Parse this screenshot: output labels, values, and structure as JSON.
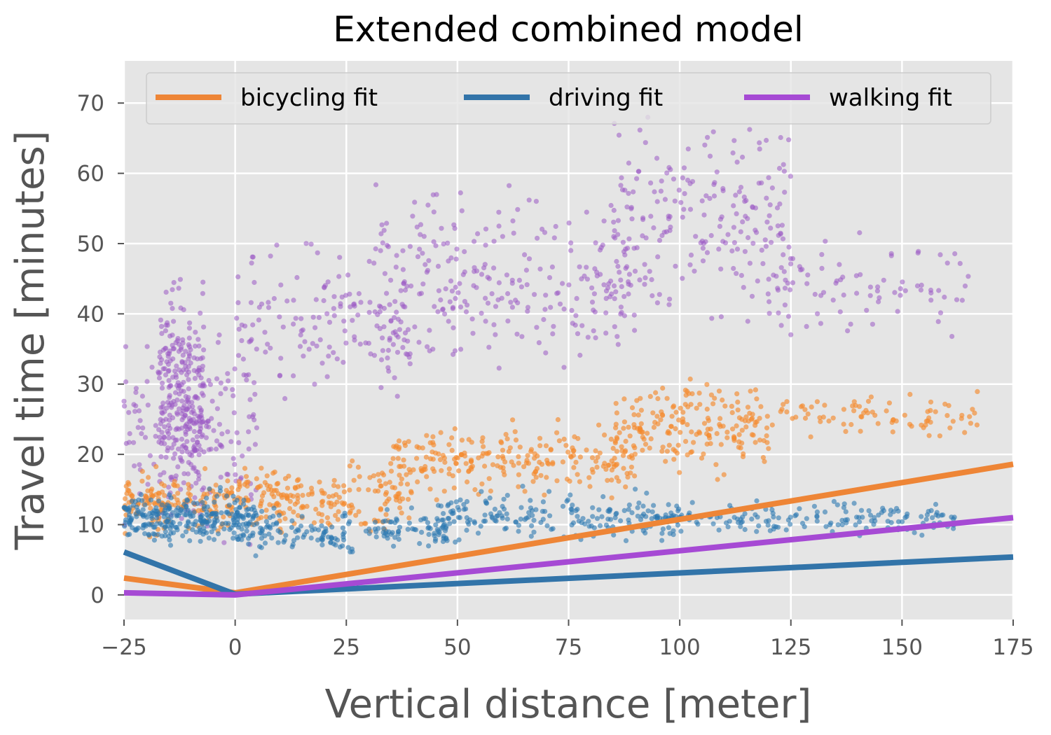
{
  "chart_data": {
    "type": "scatter",
    "title": "Extended combined model",
    "xlabel": "Vertical distance [meter]",
    "ylabel": "Travel time [minutes]",
    "xlim": [
      -25,
      175
    ],
    "ylim": [
      -3.5,
      76
    ],
    "x_ticks": [
      -25,
      0,
      25,
      50,
      75,
      100,
      125,
      150,
      175
    ],
    "x_tick_labels": [
      "−25",
      "0",
      "25",
      "50",
      "75",
      "100",
      "125",
      "150",
      "175"
    ],
    "y_ticks": [
      0,
      10,
      20,
      30,
      40,
      50,
      60,
      70
    ],
    "y_tick_labels": [
      "0",
      "10",
      "20",
      "30",
      "40",
      "50",
      "60",
      "70"
    ],
    "grid": true,
    "legend_placement": "top",
    "legend_columns": 3,
    "colors": {
      "background": "#e5e5e5",
      "grid": "#ffffff",
      "bicycling": "#ee8536",
      "driving": "#3274a9",
      "walking": "#a64ad4",
      "bicycling_points": "#f58a2e",
      "driving_points": "#2b78b0",
      "walking_points": "#9b59c4"
    },
    "fit_lines": [
      {
        "name": "bicycling fit",
        "color_key": "bicycling",
        "x": [
          -25,
          0,
          175
        ],
        "y": [
          2.4,
          0.3,
          18.6
        ]
      },
      {
        "name": "driving fit",
        "color_key": "driving",
        "x": [
          -25,
          0,
          175
        ],
        "y": [
          6.1,
          0.1,
          5.4
        ]
      },
      {
        "name": "walking fit",
        "color_key": "walking",
        "x": [
          -25,
          0,
          175
        ],
        "y": [
          0.3,
          0.0,
          11.0
        ]
      }
    ],
    "scatter_series": [
      {
        "color_key": "walking_points",
        "opacity": 0.55,
        "clusters": [
          {
            "count": 260,
            "x_range": [
              -17,
              -7
            ],
            "y_mean": 28,
            "y_spread": 12
          },
          {
            "count": 170,
            "x_range": [
              -25,
              5
            ],
            "y_mean": 24,
            "y_spread": 11
          },
          {
            "count": 150,
            "x_range": [
              0,
              40
            ],
            "y_mean": 38,
            "y_spread": 8
          },
          {
            "count": 260,
            "x_range": [
              30,
              90
            ],
            "y_mean": 45,
            "y_spread": 9
          },
          {
            "count": 200,
            "x_range": [
              85,
              125
            ],
            "y_mean": 54,
            "y_spread": 12
          },
          {
            "count": 80,
            "x_range": [
              120,
              165
            ],
            "y_mean": 44,
            "y_spread": 6
          }
        ]
      },
      {
        "color_key": "bicycling_points",
        "opacity": 0.65,
        "clusters": [
          {
            "count": 150,
            "x_range": [
              -25,
              0
            ],
            "y_mean": 13,
            "y_spread": 3
          },
          {
            "count": 200,
            "x_range": [
              0,
              40
            ],
            "y_mean": 14,
            "y_spread": 3.5
          },
          {
            "count": 230,
            "x_range": [
              35,
              90
            ],
            "y_mean": 19,
            "y_spread": 3.5
          },
          {
            "count": 190,
            "x_range": [
              85,
              120
            ],
            "y_mean": 24,
            "y_spread": 5
          },
          {
            "count": 80,
            "x_range": [
              118,
              168
            ],
            "y_mean": 25.5,
            "y_spread": 2.5
          }
        ]
      },
      {
        "color_key": "driving_points",
        "opacity": 0.6,
        "clusters": [
          {
            "count": 280,
            "x_range": [
              -25,
              5
            ],
            "y_mean": 11,
            "y_spread": 2.5
          },
          {
            "count": 170,
            "x_range": [
              0,
              50
            ],
            "y_mean": 9,
            "y_spread": 2.5
          },
          {
            "count": 200,
            "x_range": [
              45,
              100
            ],
            "y_mean": 11,
            "y_spread": 2.5
          },
          {
            "count": 160,
            "x_range": [
              95,
              162
            ],
            "y_mean": 11,
            "y_spread": 1.8
          }
        ]
      }
    ]
  }
}
